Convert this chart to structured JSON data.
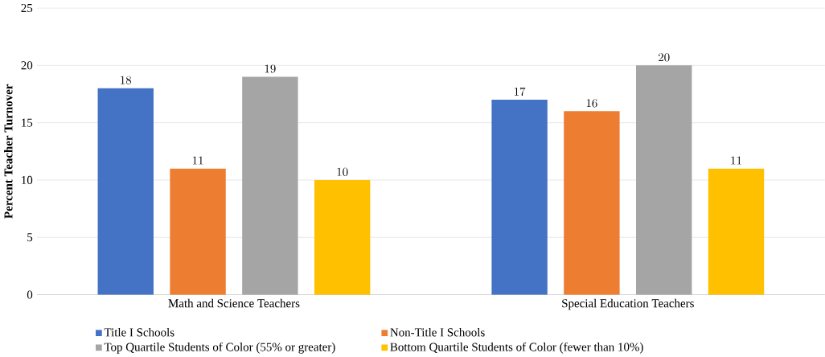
{
  "chart_data": {
    "type": "bar",
    "ylabel": "Percent Teacher Turnover",
    "categories": [
      "Math and Science Teachers",
      "Special Education Teachers"
    ],
    "series": [
      {
        "name": "Title I Schools",
        "color": "#4472c4",
        "values": [
          18,
          17
        ]
      },
      {
        "name": "Non-Title I Schools",
        "color": "#ed7d31",
        "values": [
          11,
          16
        ]
      },
      {
        "name": "Top Quartile Students of Color (55% or greater)",
        "color": "#a5a5a5",
        "values": [
          19,
          20
        ]
      },
      {
        "name": "Bottom Quartile Students of Color (fewer than 10%)",
        "color": "#ffc000",
        "values": [
          10,
          11
        ]
      }
    ],
    "ylim": [
      0,
      25
    ],
    "yticks": [
      0,
      5,
      10,
      15,
      20,
      25
    ],
    "grid": "y",
    "legend": "bottom",
    "data_labels": true
  }
}
